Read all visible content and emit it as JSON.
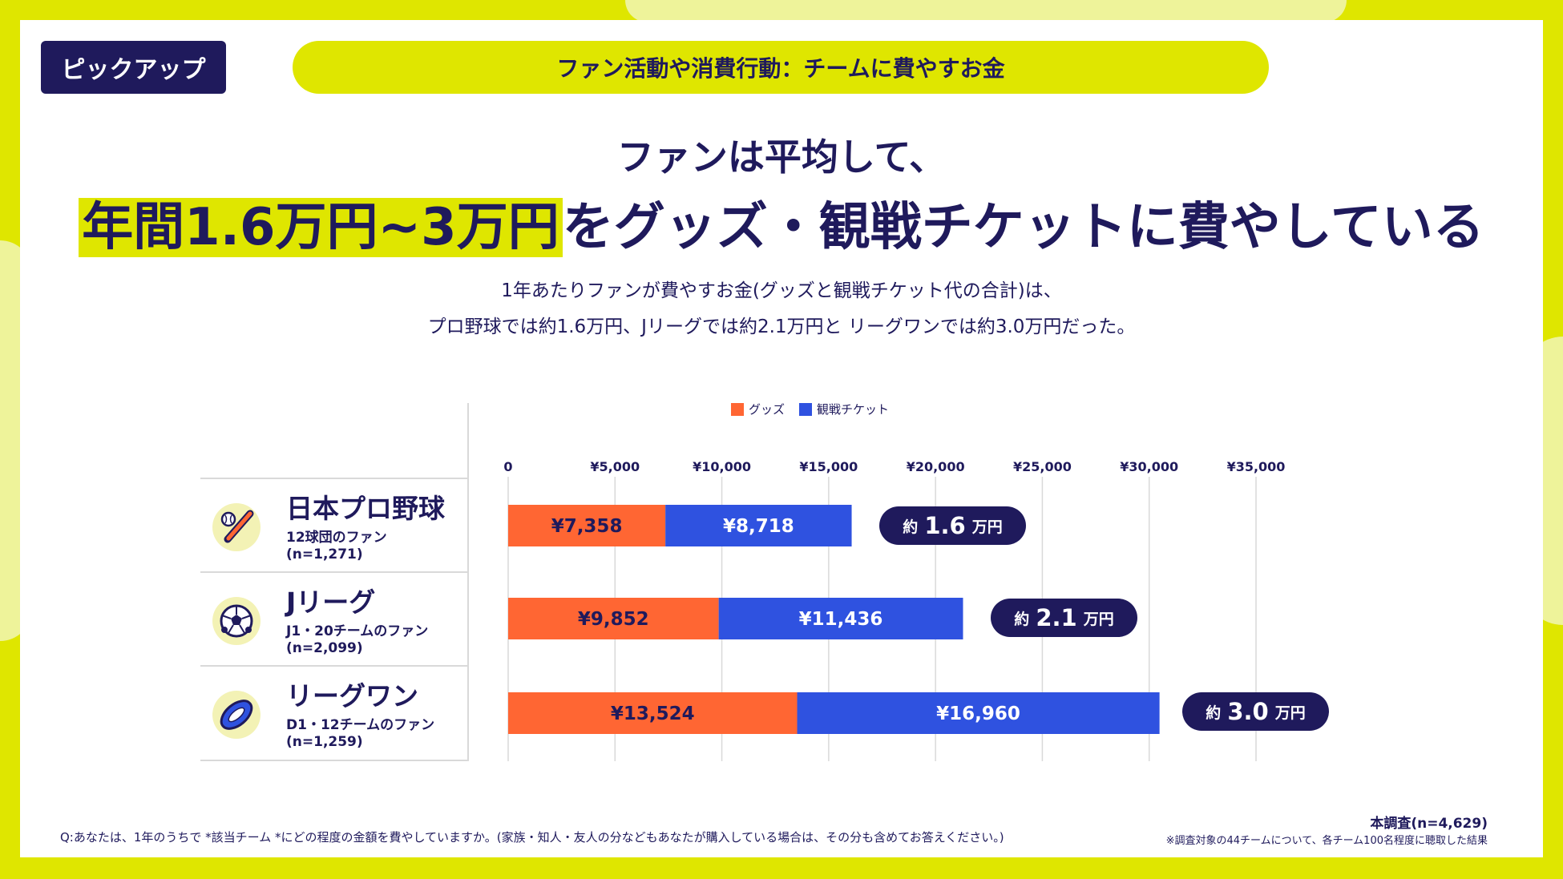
{
  "header": {
    "badge": "ピックアップ",
    "topic": "ファン活動や消費行動：チームに費やすお金"
  },
  "headline": {
    "line1": "ファンは平均して、",
    "highlight": "年間1.6万円~3万円",
    "rest": "をグッズ・観戦チケットに費やしている"
  },
  "lead": {
    "line1": "1年あたりファンが費やすお金(グッズと観戦チケット代の合計)は、",
    "line2": "プロ野球では約1.6万円、Jリーグでは約2.1万円と リーグワンでは約3.0万円だった。"
  },
  "colors": {
    "goods": "#ff6633",
    "ticket": "#2f52e0",
    "navy": "#1f1a5c",
    "accent": "#dfe600"
  },
  "leagues": [
    {
      "name": "日本プロ野球",
      "sub": "12球団のファン",
      "n": "(n=1,271)",
      "icon": "baseball-bat-icon",
      "approx_prefix": "約",
      "approx_value": "1.6",
      "approx_unit": "万円"
    },
    {
      "name": "Jリーグ",
      "sub": "J1・20チームのファン",
      "n": "(n=2,099)",
      "icon": "soccer-ball-icon",
      "approx_prefix": "約",
      "approx_value": "2.1",
      "approx_unit": "万円"
    },
    {
      "name": "リーグワン",
      "sub": "D1・12チームのファン",
      "n": "(n=1,259)",
      "icon": "rugby-ball-icon",
      "approx_prefix": "約",
      "approx_value": "3.0",
      "approx_unit": "万円"
    }
  ],
  "chart_data": {
    "type": "bar",
    "orientation": "horizontal",
    "stacked": true,
    "categories": [
      "日本プロ野球",
      "Jリーグ",
      "リーグワン"
    ],
    "series": [
      {
        "name": "グッズ",
        "values": [
          7358,
          9852,
          13524
        ],
        "labels": [
          "¥7,358",
          "¥9,852",
          "¥13,524"
        ]
      },
      {
        "name": "観戦チケット",
        "values": [
          8718,
          11436,
          16960
        ],
        "labels": [
          "¥8,718",
          "¥11,436",
          "¥16,960"
        ]
      }
    ],
    "xticks": [
      0,
      5000,
      10000,
      15000,
      20000,
      25000,
      30000,
      35000
    ],
    "xtick_labels": [
      "0",
      "¥5,000",
      "¥10,000",
      "¥15,000",
      "¥20,000",
      "¥25,000",
      "¥30,000",
      "¥35,000"
    ],
    "xlim": [
      0,
      35000
    ],
    "legend": "top",
    "grid": true
  },
  "footer": {
    "question": "Q:あなたは、1年のうちで *該当チーム *にどの程度の金額を費やしていますか。(家族・知人・友人の分などもあなたが購入している場合は、その分も含めてお答えください。)",
    "sample": "本調査(n=4,629)",
    "note": "※調査対象の44チームについて、各チーム100名程度に聴取した結果"
  }
}
